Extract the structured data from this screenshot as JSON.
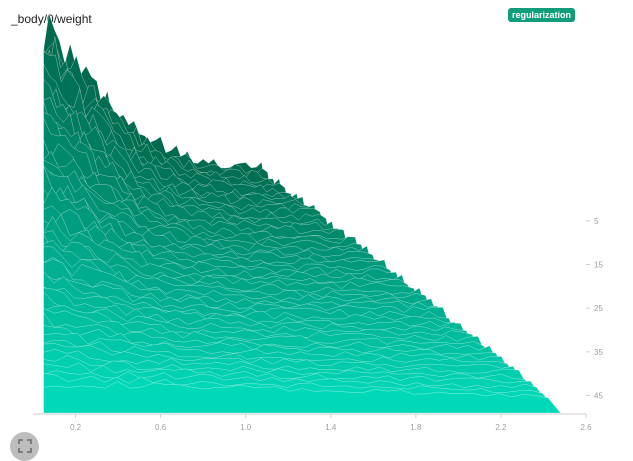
{
  "panel": {
    "title": "_body/0/weight",
    "tag": "regularization",
    "fullscreen_icon": "fullscreen-icon"
  },
  "chart_data": {
    "type": "area",
    "style": "histogram-offset",
    "title": "_body/0/weight",
    "xlabel": "",
    "ylabel": "",
    "xlim": [
      0.0,
      2.6
    ],
    "x_ticks": [
      "0.2",
      "0.6",
      "1.0",
      "1.4",
      "1.8",
      "2.2",
      "2.6"
    ],
    "y_ticks": [
      "5",
      "15",
      "25",
      "35",
      "45"
    ],
    "step_range": [
      0,
      49
    ],
    "num_steps": 50,
    "colors": {
      "back": "#006a4e",
      "front": "#00d9b8",
      "line": "#ffffff"
    },
    "series": [
      {
        "step": 0,
        "description_points": [
          [
            0.0,
            3
          ],
          [
            0.2,
            30
          ],
          [
            0.4,
            29
          ],
          [
            0.8,
            23
          ],
          [
            1.2,
            20
          ],
          [
            1.6,
            15
          ],
          [
            2.0,
            10
          ],
          [
            2.4,
            6
          ]
        ]
      },
      {
        "step": 49,
        "description_points": [
          [
            0.0,
            100
          ],
          [
            0.1,
            93
          ],
          [
            0.2,
            80
          ],
          [
            0.3,
            62
          ],
          [
            0.4,
            48
          ],
          [
            0.5,
            39
          ],
          [
            0.6,
            36
          ],
          [
            0.8,
            34
          ],
          [
            1.0,
            33
          ]
        ]
      }
    ]
  }
}
